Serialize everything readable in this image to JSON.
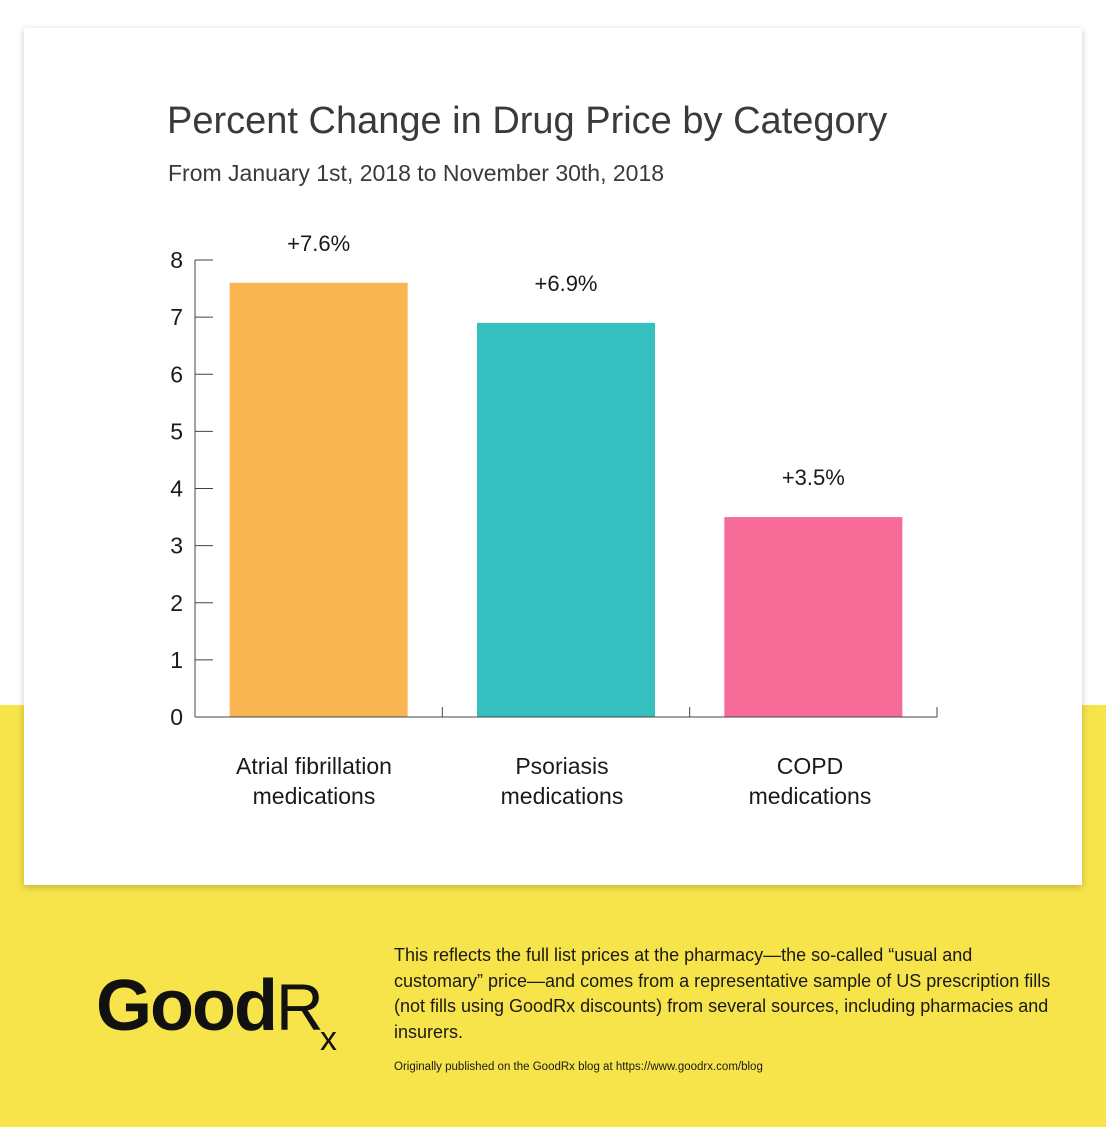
{
  "colors": {
    "background_top": "#ffffff",
    "background_bottom": "#f7e34a",
    "text": "#1a1a1a"
  },
  "chart_data": {
    "type": "bar",
    "title": "Percent Change in Drug Price by Category",
    "subtitle": "From January 1st, 2018 to November 30th, 2018",
    "categories": [
      [
        "Atrial fibrillation",
        "medications"
      ],
      [
        "Psoriasis",
        "medications"
      ],
      [
        "COPD",
        "medications"
      ]
    ],
    "values": [
      7.6,
      6.9,
      3.5
    ],
    "data_labels": [
      "+7.6%",
      "+6.9%",
      "+3.5%"
    ],
    "colors": [
      "#f9b552",
      "#35bfbf",
      "#f66b98"
    ],
    "y_ticks": [
      0,
      1,
      2,
      3,
      4,
      5,
      6,
      7,
      8
    ],
    "ylim": [
      0,
      8
    ],
    "xlabel": "",
    "ylabel": "",
    "grid": false
  },
  "footer": {
    "logo_text": "GoodRx",
    "note": "This reflects the full list prices at the pharmacy—the so-called “usual and customary” price—and comes from a representative sample of US prescription fills (not fills using GoodRx discounts) from several sources, including pharmacies and insurers.",
    "source": "Originally published on the GoodRx blog at https://www.goodrx.com/blog"
  }
}
